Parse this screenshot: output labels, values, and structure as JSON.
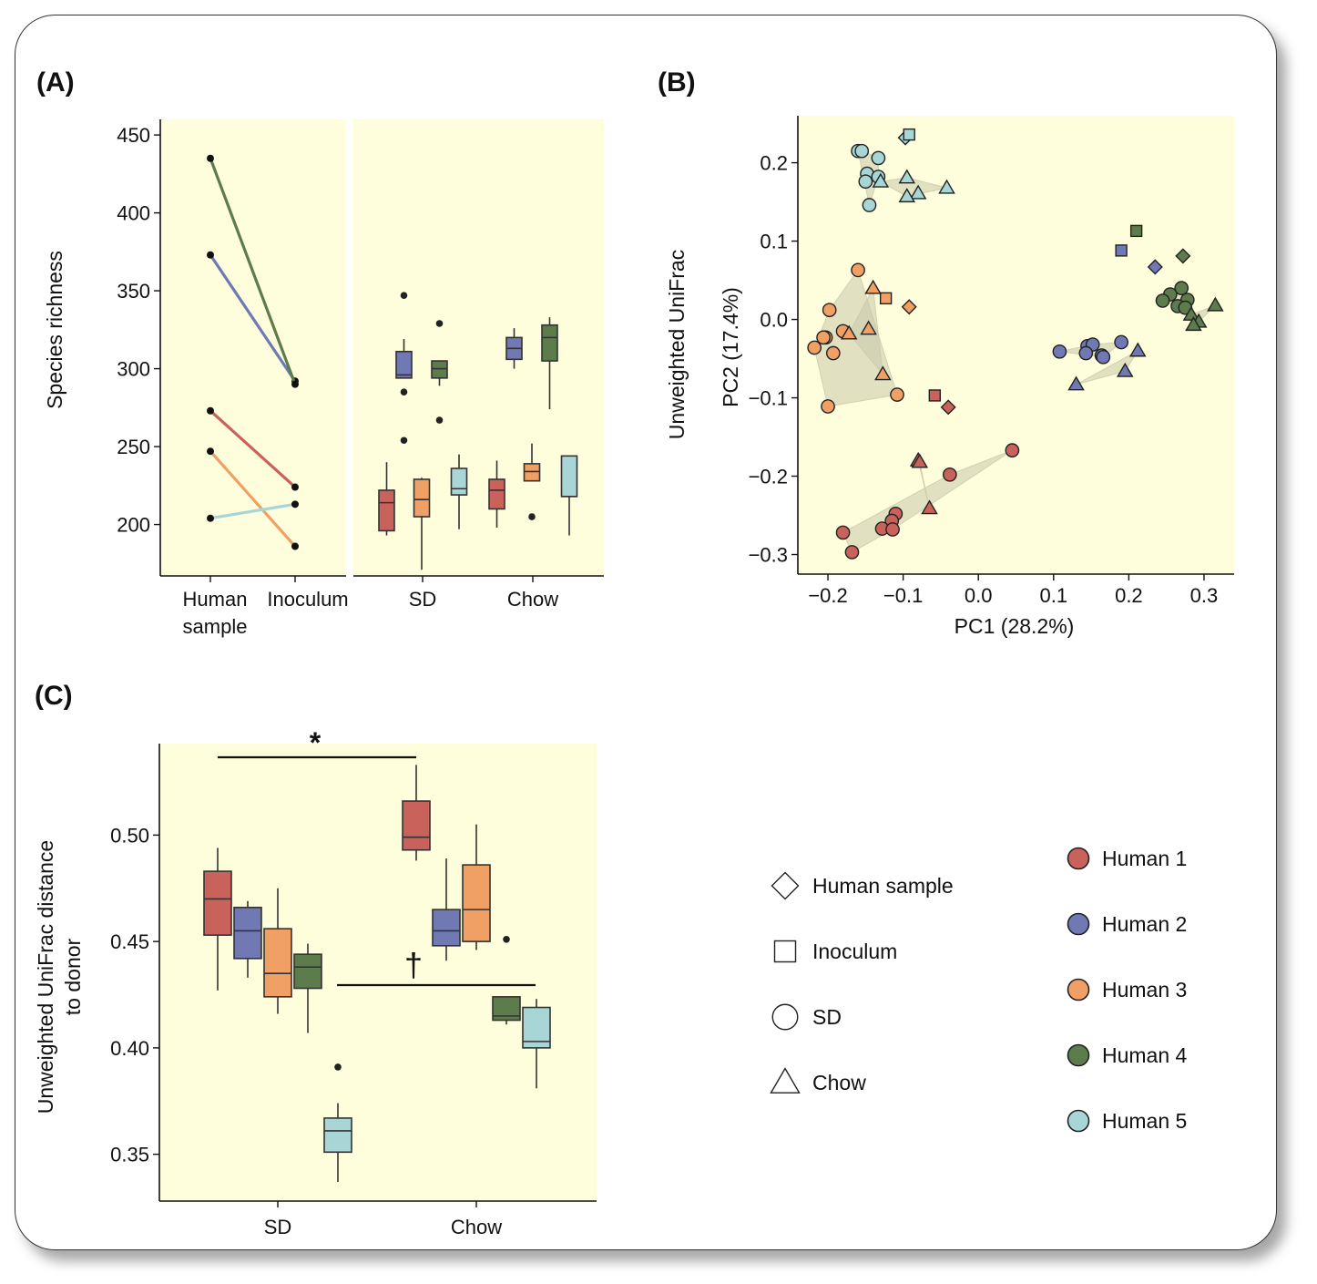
{
  "colors": {
    "Human 1": "#C8625A",
    "Human 2": "#7079B4",
    "Human 3": "#F0A064",
    "Human 4": "#5C7C4C",
    "Human 5": "#A8D6D6",
    "panel_bg": "#FEFEDC",
    "hull": "#C8C8AC"
  },
  "legend": {
    "shapes": [
      {
        "label": "Human sample",
        "shape": "diamond"
      },
      {
        "label": "Inoculum",
        "shape": "square"
      },
      {
        "label": "SD",
        "shape": "circle"
      },
      {
        "label": "Chow",
        "shape": "triangle"
      }
    ],
    "groups": [
      "Human 1",
      "Human 2",
      "Human 3",
      "Human 4",
      "Human 5"
    ]
  },
  "chart_data": [
    {
      "panel": "(A)",
      "type": "line",
      "ylabel": "Species richness",
      "yticks": [
        200,
        250,
        300,
        350,
        400,
        450
      ],
      "ylim": [
        167,
        460
      ],
      "left": {
        "categories": [
          "Human\nsample",
          "Inoculum"
        ],
        "series": [
          {
            "name": "Human 1",
            "values": [
              273,
              224
            ]
          },
          {
            "name": "Human 2",
            "values": [
              373,
              292
            ]
          },
          {
            "name": "Human 3",
            "values": [
              247,
              186
            ]
          },
          {
            "name": "Human 4",
            "values": [
              435,
              290
            ]
          },
          {
            "name": "Human 5",
            "values": [
              204,
              213
            ]
          }
        ]
      },
      "right": {
        "type": "box",
        "categories": [
          "SD",
          "Chow"
        ],
        "boxes": [
          {
            "group": "SD",
            "name": "Human 1",
            "min": 193,
            "q1": 196,
            "median": 214,
            "q3": 222,
            "max": 240,
            "outliers": []
          },
          {
            "group": "SD",
            "name": "Human 2",
            "min": 294,
            "q1": 294,
            "median": 296,
            "q3": 311,
            "max": 319,
            "outliers": [
              347,
              285,
              254
            ]
          },
          {
            "group": "SD",
            "name": "Human 3",
            "min": 171,
            "q1": 205,
            "median": 216,
            "q3": 229,
            "max": 230,
            "outliers": []
          },
          {
            "group": "SD",
            "name": "Human 4",
            "min": 289,
            "q1": 294,
            "median": 300,
            "q3": 305,
            "max": 305,
            "outliers": [
              329,
              267
            ]
          },
          {
            "group": "SD",
            "name": "Human 5",
            "min": 197,
            "q1": 219,
            "median": 223,
            "q3": 236,
            "max": 245,
            "outliers": []
          },
          {
            "group": "Chow",
            "name": "Human 1",
            "min": 198,
            "q1": 210,
            "median": 222,
            "q3": 229,
            "max": 241,
            "outliers": []
          },
          {
            "group": "Chow",
            "name": "Human 2",
            "min": 300,
            "q1": 306,
            "median": 313,
            "q3": 320,
            "max": 326,
            "outliers": []
          },
          {
            "group": "Chow",
            "name": "Human 3",
            "min": 228,
            "q1": 228,
            "median": 234,
            "q3": 239,
            "max": 252,
            "outliers": [
              205
            ]
          },
          {
            "group": "Chow",
            "name": "Human 4",
            "min": 274,
            "q1": 305,
            "median": 320,
            "q3": 328,
            "max": 333,
            "outliers": []
          },
          {
            "group": "Chow",
            "name": "Human 5",
            "min": 193,
            "q1": 218,
            "median": 218,
            "q3": 244,
            "max": 244,
            "outliers": []
          }
        ]
      }
    },
    {
      "panel": "(B)",
      "type": "scatter",
      "xlabel": "PC1 (28.2%)",
      "ylabel": "PC2 (17.4%)",
      "ylabel_outer": "Unweighted UniFrac",
      "xticks": [
        -0.2,
        -0.1,
        0.0,
        0.1,
        0.2,
        0.3
      ],
      "yticks": [
        0.2,
        0.1,
        0.0,
        -0.1,
        -0.2,
        -0.3
      ],
      "xlim": [
        -0.24,
        0.34
      ],
      "ylim": [
        -0.325,
        0.26
      ],
      "points": [
        {
          "x": -0.097,
          "y": 0.232,
          "shape": "diamond",
          "group": "Human 5"
        },
        {
          "x": -0.092,
          "y": 0.236,
          "shape": "square",
          "group": "Human 5"
        },
        {
          "x": -0.16,
          "y": 0.215,
          "shape": "circle",
          "group": "Human 5"
        },
        {
          "x": -0.155,
          "y": 0.215,
          "shape": "circle",
          "group": "Human 5"
        },
        {
          "x": -0.133,
          "y": 0.206,
          "shape": "circle",
          "group": "Human 5"
        },
        {
          "x": -0.148,
          "y": 0.186,
          "shape": "circle",
          "group": "Human 5"
        },
        {
          "x": -0.133,
          "y": 0.182,
          "shape": "circle",
          "group": "Human 5"
        },
        {
          "x": -0.15,
          "y": 0.176,
          "shape": "circle",
          "group": "Human 5"
        },
        {
          "x": -0.145,
          "y": 0.146,
          "shape": "circle",
          "group": "Human 5"
        },
        {
          "x": -0.095,
          "y": 0.181,
          "shape": "triangle",
          "group": "Human 5"
        },
        {
          "x": -0.13,
          "y": 0.176,
          "shape": "triangle",
          "group": "Human 5"
        },
        {
          "x": -0.08,
          "y": 0.161,
          "shape": "triangle",
          "group": "Human 5"
        },
        {
          "x": -0.095,
          "y": 0.157,
          "shape": "triangle",
          "group": "Human 5"
        },
        {
          "x": -0.042,
          "y": 0.168,
          "shape": "triangle",
          "group": "Human 5"
        },
        {
          "x": 0.272,
          "y": 0.081,
          "shape": "diamond",
          "group": "Human 4"
        },
        {
          "x": 0.21,
          "y": 0.113,
          "shape": "square",
          "group": "Human 4"
        },
        {
          "x": 0.27,
          "y": 0.04,
          "shape": "circle",
          "group": "Human 4"
        },
        {
          "x": 0.255,
          "y": 0.032,
          "shape": "circle",
          "group": "Human 4"
        },
        {
          "x": 0.278,
          "y": 0.025,
          "shape": "circle",
          "group": "Human 4"
        },
        {
          "x": 0.245,
          "y": 0.024,
          "shape": "circle",
          "group": "Human 4"
        },
        {
          "x": 0.265,
          "y": 0.017,
          "shape": "circle",
          "group": "Human 4"
        },
        {
          "x": 0.275,
          "y": 0.015,
          "shape": "circle",
          "group": "Human 4"
        },
        {
          "x": 0.315,
          "y": 0.018,
          "shape": "triangle",
          "group": "Human 4"
        },
        {
          "x": 0.283,
          "y": 0.006,
          "shape": "triangle",
          "group": "Human 4"
        },
        {
          "x": 0.293,
          "y": -0.003,
          "shape": "triangle",
          "group": "Human 4"
        },
        {
          "x": 0.286,
          "y": -0.007,
          "shape": "triangle",
          "group": "Human 4"
        },
        {
          "x": 0.235,
          "y": 0.067,
          "shape": "diamond",
          "group": "Human 2"
        },
        {
          "x": 0.19,
          "y": 0.088,
          "shape": "square",
          "group": "Human 2"
        },
        {
          "x": 0.108,
          "y": -0.041,
          "shape": "circle",
          "group": "Human 2"
        },
        {
          "x": 0.145,
          "y": -0.034,
          "shape": "circle",
          "group": "Human 2"
        },
        {
          "x": 0.152,
          "y": -0.032,
          "shape": "circle",
          "group": "Human 2"
        },
        {
          "x": 0.19,
          "y": -0.029,
          "shape": "circle",
          "group": "Human 2"
        },
        {
          "x": 0.143,
          "y": -0.043,
          "shape": "circle",
          "group": "Human 2"
        },
        {
          "x": 0.164,
          "y": -0.046,
          "shape": "circle",
          "group": "Human 2"
        },
        {
          "x": 0.166,
          "y": -0.048,
          "shape": "circle",
          "group": "Human 2"
        },
        {
          "x": 0.212,
          "y": -0.04,
          "shape": "triangle",
          "group": "Human 2"
        },
        {
          "x": 0.195,
          "y": -0.066,
          "shape": "triangle",
          "group": "Human 2"
        },
        {
          "x": 0.13,
          "y": -0.083,
          "shape": "triangle",
          "group": "Human 2"
        },
        {
          "x": -0.092,
          "y": 0.016,
          "shape": "diamond",
          "group": "Human 3"
        },
        {
          "x": -0.123,
          "y": 0.027,
          "shape": "square",
          "group": "Human 3"
        },
        {
          "x": -0.16,
          "y": 0.063,
          "shape": "circle",
          "group": "Human 3"
        },
        {
          "x": -0.198,
          "y": 0.012,
          "shape": "circle",
          "group": "Human 3"
        },
        {
          "x": -0.18,
          "y": -0.015,
          "shape": "circle",
          "group": "Human 3"
        },
        {
          "x": -0.203,
          "y": -0.023,
          "shape": "circle",
          "group": "Human 3"
        },
        {
          "x": -0.206,
          "y": -0.023,
          "shape": "circle",
          "group": "Human 3"
        },
        {
          "x": -0.218,
          "y": -0.036,
          "shape": "circle",
          "group": "Human 3"
        },
        {
          "x": -0.193,
          "y": -0.043,
          "shape": "circle",
          "group": "Human 3"
        },
        {
          "x": -0.108,
          "y": -0.096,
          "shape": "circle",
          "group": "Human 3"
        },
        {
          "x": -0.2,
          "y": -0.111,
          "shape": "circle",
          "group": "Human 3"
        },
        {
          "x": -0.14,
          "y": 0.04,
          "shape": "triangle",
          "group": "Human 3"
        },
        {
          "x": -0.146,
          "y": -0.012,
          "shape": "triangle",
          "group": "Human 3"
        },
        {
          "x": -0.172,
          "y": -0.018,
          "shape": "triangle",
          "group": "Human 3"
        },
        {
          "x": -0.127,
          "y": -0.07,
          "shape": "triangle",
          "group": "Human 3"
        },
        {
          "x": -0.04,
          "y": -0.112,
          "shape": "diamond",
          "group": "Human 1"
        },
        {
          "x": -0.058,
          "y": -0.097,
          "shape": "square",
          "group": "Human 1"
        },
        {
          "x": 0.045,
          "y": -0.167,
          "shape": "circle",
          "group": "Human 1"
        },
        {
          "x": -0.038,
          "y": -0.198,
          "shape": "circle",
          "group": "Human 1"
        },
        {
          "x": -0.11,
          "y": -0.248,
          "shape": "circle",
          "group": "Human 1"
        },
        {
          "x": -0.115,
          "y": -0.257,
          "shape": "circle",
          "group": "Human 1"
        },
        {
          "x": -0.128,
          "y": -0.267,
          "shape": "circle",
          "group": "Human 1"
        },
        {
          "x": -0.114,
          "y": -0.268,
          "shape": "circle",
          "group": "Human 1"
        },
        {
          "x": -0.18,
          "y": -0.272,
          "shape": "circle",
          "group": "Human 1"
        },
        {
          "x": -0.168,
          "y": -0.297,
          "shape": "circle",
          "group": "Human 1"
        },
        {
          "x": -0.08,
          "y": -0.18,
          "shape": "triangle",
          "group": "Human 1"
        },
        {
          "x": -0.078,
          "y": -0.182,
          "shape": "triangle",
          "group": "Human 1"
        },
        {
          "x": -0.065,
          "y": -0.241,
          "shape": "triangle",
          "group": "Human 1"
        }
      ]
    },
    {
      "panel": "(C)",
      "type": "box",
      "ylabel": "Unweighted UniFrac distance\nto donor",
      "categories": [
        "SD",
        "Chow"
      ],
      "yticks": [
        0.35,
        0.4,
        0.45,
        0.5
      ],
      "ylim": [
        0.328,
        0.543
      ],
      "annotations": [
        {
          "text": "*",
          "from": "SD Human 1",
          "to": "Chow Human 1"
        },
        {
          "text": "†",
          "from": "SD Human 5",
          "to": "Chow Human 5"
        }
      ],
      "boxes": [
        {
          "group": "SD",
          "name": "Human 1",
          "min": 0.427,
          "q1": 0.453,
          "median": 0.47,
          "q3": 0.483,
          "max": 0.494,
          "outliers": []
        },
        {
          "group": "SD",
          "name": "Human 2",
          "min": 0.433,
          "q1": 0.442,
          "median": 0.455,
          "q3": 0.466,
          "max": 0.469,
          "outliers": []
        },
        {
          "group": "SD",
          "name": "Human 3",
          "min": 0.416,
          "q1": 0.424,
          "median": 0.435,
          "q3": 0.456,
          "max": 0.475,
          "outliers": []
        },
        {
          "group": "SD",
          "name": "Human 4",
          "min": 0.407,
          "q1": 0.428,
          "median": 0.438,
          "q3": 0.444,
          "max": 0.449,
          "outliers": []
        },
        {
          "group": "SD",
          "name": "Human 5",
          "min": 0.337,
          "q1": 0.351,
          "median": 0.361,
          "q3": 0.367,
          "max": 0.374,
          "outliers": [
            0.391
          ]
        },
        {
          "group": "Chow",
          "name": "Human 1",
          "min": 0.488,
          "q1": 0.493,
          "median": 0.499,
          "q3": 0.516,
          "max": 0.533,
          "outliers": []
        },
        {
          "group": "Chow",
          "name": "Human 2",
          "min": 0.441,
          "q1": 0.448,
          "median": 0.455,
          "q3": 0.465,
          "max": 0.489,
          "outliers": []
        },
        {
          "group": "Chow",
          "name": "Human 3",
          "min": 0.446,
          "q1": 0.45,
          "median": 0.465,
          "q3": 0.486,
          "max": 0.505,
          "outliers": []
        },
        {
          "group": "Chow",
          "name": "Human 4",
          "min": 0.411,
          "q1": 0.413,
          "median": 0.415,
          "q3": 0.424,
          "max": 0.424,
          "outliers": [
            0.451
          ]
        },
        {
          "group": "Chow",
          "name": "Human 5",
          "min": 0.381,
          "q1": 0.4,
          "median": 0.403,
          "q3": 0.419,
          "max": 0.423,
          "outliers": []
        }
      ]
    }
  ]
}
